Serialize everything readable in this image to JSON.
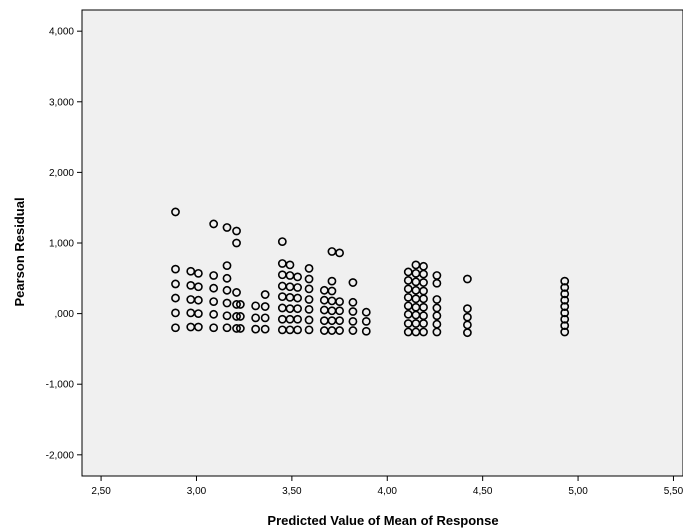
{
  "chart_data": {
    "type": "scatter",
    "title": "",
    "xlabel": "Predicted Value of Mean of Response",
    "ylabel": "Pearson Residual",
    "xlim": [
      2.4,
      5.55
    ],
    "ylim": [
      -2.3,
      4.3
    ],
    "x_ticks": [
      2.5,
      3.0,
      3.5,
      4.0,
      4.5,
      5.0,
      5.5
    ],
    "x_tick_labels": [
      "2,50",
      "3,00",
      "3,50",
      "4,00",
      "4,50",
      "5,00",
      "5,50"
    ],
    "y_ticks": [
      -2,
      -1,
      0,
      1,
      2,
      3,
      4
    ],
    "y_tick_labels": [
      "-2,000",
      "-1,000",
      ",000",
      "1,000",
      "2,000",
      "3,000",
      "4,000"
    ],
    "grid": false,
    "plot_background": "#f0f0f0",
    "marker": "open-circle",
    "marker_color": "#000000",
    "points": [
      {
        "x": 2.89,
        "y": 1.44
      },
      {
        "x": 2.89,
        "y": 0.63
      },
      {
        "x": 2.89,
        "y": 0.42
      },
      {
        "x": 2.89,
        "y": 0.22
      },
      {
        "x": 2.89,
        "y": 0.01
      },
      {
        "x": 2.89,
        "y": -0.2
      },
      {
        "x": 2.97,
        "y": 0.6
      },
      {
        "x": 2.97,
        "y": 0.4
      },
      {
        "x": 2.97,
        "y": 0.2
      },
      {
        "x": 2.97,
        "y": 0.01
      },
      {
        "x": 2.97,
        "y": -0.19
      },
      {
        "x": 3.01,
        "y": 0.57
      },
      {
        "x": 3.01,
        "y": 0.38
      },
      {
        "x": 3.01,
        "y": 0.19
      },
      {
        "x": 3.01,
        "y": 0.0
      },
      {
        "x": 3.01,
        "y": -0.19
      },
      {
        "x": 3.09,
        "y": 1.27
      },
      {
        "x": 3.09,
        "y": 0.54
      },
      {
        "x": 3.09,
        "y": 0.36
      },
      {
        "x": 3.09,
        "y": 0.17
      },
      {
        "x": 3.09,
        "y": -0.01
      },
      {
        "x": 3.09,
        "y": -0.2
      },
      {
        "x": 3.16,
        "y": 1.22
      },
      {
        "x": 3.16,
        "y": 0.68
      },
      {
        "x": 3.16,
        "y": 0.5
      },
      {
        "x": 3.16,
        "y": 0.33
      },
      {
        "x": 3.16,
        "y": 0.15
      },
      {
        "x": 3.16,
        "y": -0.03
      },
      {
        "x": 3.16,
        "y": -0.2
      },
      {
        "x": 3.21,
        "y": 1.17
      },
      {
        "x": 3.21,
        "y": 1.0
      },
      {
        "x": 3.21,
        "y": 0.3
      },
      {
        "x": 3.21,
        "y": 0.13
      },
      {
        "x": 3.21,
        "y": -0.04
      },
      {
        "x": 3.21,
        "y": -0.21
      },
      {
        "x": 3.23,
        "y": 0.13
      },
      {
        "x": 3.23,
        "y": -0.04
      },
      {
        "x": 3.23,
        "y": -0.21
      },
      {
        "x": 3.31,
        "y": 0.11
      },
      {
        "x": 3.31,
        "y": -0.06
      },
      {
        "x": 3.31,
        "y": -0.22
      },
      {
        "x": 3.36,
        "y": 0.27
      },
      {
        "x": 3.36,
        "y": 0.1
      },
      {
        "x": 3.36,
        "y": -0.06
      },
      {
        "x": 3.36,
        "y": -0.22
      },
      {
        "x": 3.45,
        "y": 1.02
      },
      {
        "x": 3.45,
        "y": 0.71
      },
      {
        "x": 3.45,
        "y": 0.55
      },
      {
        "x": 3.45,
        "y": 0.39
      },
      {
        "x": 3.45,
        "y": 0.24
      },
      {
        "x": 3.45,
        "y": 0.08
      },
      {
        "x": 3.45,
        "y": -0.08
      },
      {
        "x": 3.45,
        "y": -0.23
      },
      {
        "x": 3.49,
        "y": 0.69
      },
      {
        "x": 3.49,
        "y": 0.54
      },
      {
        "x": 3.49,
        "y": 0.38
      },
      {
        "x": 3.49,
        "y": 0.23
      },
      {
        "x": 3.49,
        "y": 0.07
      },
      {
        "x": 3.49,
        "y": -0.08
      },
      {
        "x": 3.49,
        "y": -0.23
      },
      {
        "x": 3.53,
        "y": 0.52
      },
      {
        "x": 3.53,
        "y": 0.37
      },
      {
        "x": 3.53,
        "y": 0.22
      },
      {
        "x": 3.53,
        "y": 0.07
      },
      {
        "x": 3.53,
        "y": -0.08
      },
      {
        "x": 3.53,
        "y": -0.23
      },
      {
        "x": 3.59,
        "y": 0.64
      },
      {
        "x": 3.59,
        "y": 0.49
      },
      {
        "x": 3.59,
        "y": 0.35
      },
      {
        "x": 3.59,
        "y": 0.2
      },
      {
        "x": 3.59,
        "y": 0.06
      },
      {
        "x": 3.59,
        "y": -0.09
      },
      {
        "x": 3.59,
        "y": -0.23
      },
      {
        "x": 3.67,
        "y": 0.33
      },
      {
        "x": 3.67,
        "y": 0.19
      },
      {
        "x": 3.67,
        "y": 0.05
      },
      {
        "x": 3.67,
        "y": -0.1
      },
      {
        "x": 3.67,
        "y": -0.24
      },
      {
        "x": 3.71,
        "y": 0.88
      },
      {
        "x": 3.71,
        "y": 0.46
      },
      {
        "x": 3.71,
        "y": 0.32
      },
      {
        "x": 3.71,
        "y": 0.18
      },
      {
        "x": 3.71,
        "y": 0.04
      },
      {
        "x": 3.71,
        "y": -0.1
      },
      {
        "x": 3.71,
        "y": -0.24
      },
      {
        "x": 3.75,
        "y": 0.86
      },
      {
        "x": 3.75,
        "y": 0.17
      },
      {
        "x": 3.75,
        "y": 0.04
      },
      {
        "x": 3.75,
        "y": -0.1
      },
      {
        "x": 3.75,
        "y": -0.24
      },
      {
        "x": 3.82,
        "y": 0.44
      },
      {
        "x": 3.82,
        "y": 0.16
      },
      {
        "x": 3.82,
        "y": 0.03
      },
      {
        "x": 3.82,
        "y": -0.11
      },
      {
        "x": 3.82,
        "y": -0.24
      },
      {
        "x": 3.89,
        "y": 0.02
      },
      {
        "x": 3.89,
        "y": -0.11
      },
      {
        "x": 3.89,
        "y": -0.25
      },
      {
        "x": 4.11,
        "y": 0.59
      },
      {
        "x": 4.11,
        "y": 0.47
      },
      {
        "x": 4.11,
        "y": 0.35
      },
      {
        "x": 4.11,
        "y": 0.23
      },
      {
        "x": 4.11,
        "y": 0.11
      },
      {
        "x": 4.11,
        "y": -0.01
      },
      {
        "x": 4.11,
        "y": -0.14
      },
      {
        "x": 4.11,
        "y": -0.26
      },
      {
        "x": 4.15,
        "y": 0.69
      },
      {
        "x": 4.15,
        "y": 0.57
      },
      {
        "x": 4.15,
        "y": 0.45
      },
      {
        "x": 4.15,
        "y": 0.33
      },
      {
        "x": 4.15,
        "y": 0.21
      },
      {
        "x": 4.15,
        "y": 0.09
      },
      {
        "x": 4.15,
        "y": -0.02
      },
      {
        "x": 4.15,
        "y": -0.14
      },
      {
        "x": 4.15,
        "y": -0.26
      },
      {
        "x": 4.19,
        "y": 0.67
      },
      {
        "x": 4.19,
        "y": 0.56
      },
      {
        "x": 4.19,
        "y": 0.44
      },
      {
        "x": 4.19,
        "y": 0.32
      },
      {
        "x": 4.19,
        "y": 0.21
      },
      {
        "x": 4.19,
        "y": 0.09
      },
      {
        "x": 4.19,
        "y": -0.03
      },
      {
        "x": 4.19,
        "y": -0.14
      },
      {
        "x": 4.19,
        "y": -0.26
      },
      {
        "x": 4.26,
        "y": 0.54
      },
      {
        "x": 4.26,
        "y": 0.43
      },
      {
        "x": 4.26,
        "y": 0.2
      },
      {
        "x": 4.26,
        "y": 0.08
      },
      {
        "x": 4.26,
        "y": -0.03
      },
      {
        "x": 4.26,
        "y": -0.15
      },
      {
        "x": 4.26,
        "y": -0.26
      },
      {
        "x": 4.42,
        "y": 0.49
      },
      {
        "x": 4.42,
        "y": 0.07
      },
      {
        "x": 4.42,
        "y": -0.05
      },
      {
        "x": 4.42,
        "y": -0.16
      },
      {
        "x": 4.42,
        "y": -0.27
      },
      {
        "x": 4.93,
        "y": 0.46
      },
      {
        "x": 4.93,
        "y": 0.37
      },
      {
        "x": 4.93,
        "y": 0.28
      },
      {
        "x": 4.93,
        "y": 0.19
      },
      {
        "x": 4.93,
        "y": 0.1
      },
      {
        "x": 4.93,
        "y": 0.01
      },
      {
        "x": 4.93,
        "y": -0.08
      },
      {
        "x": 4.93,
        "y": -0.17
      },
      {
        "x": 4.93,
        "y": -0.26
      }
    ]
  }
}
